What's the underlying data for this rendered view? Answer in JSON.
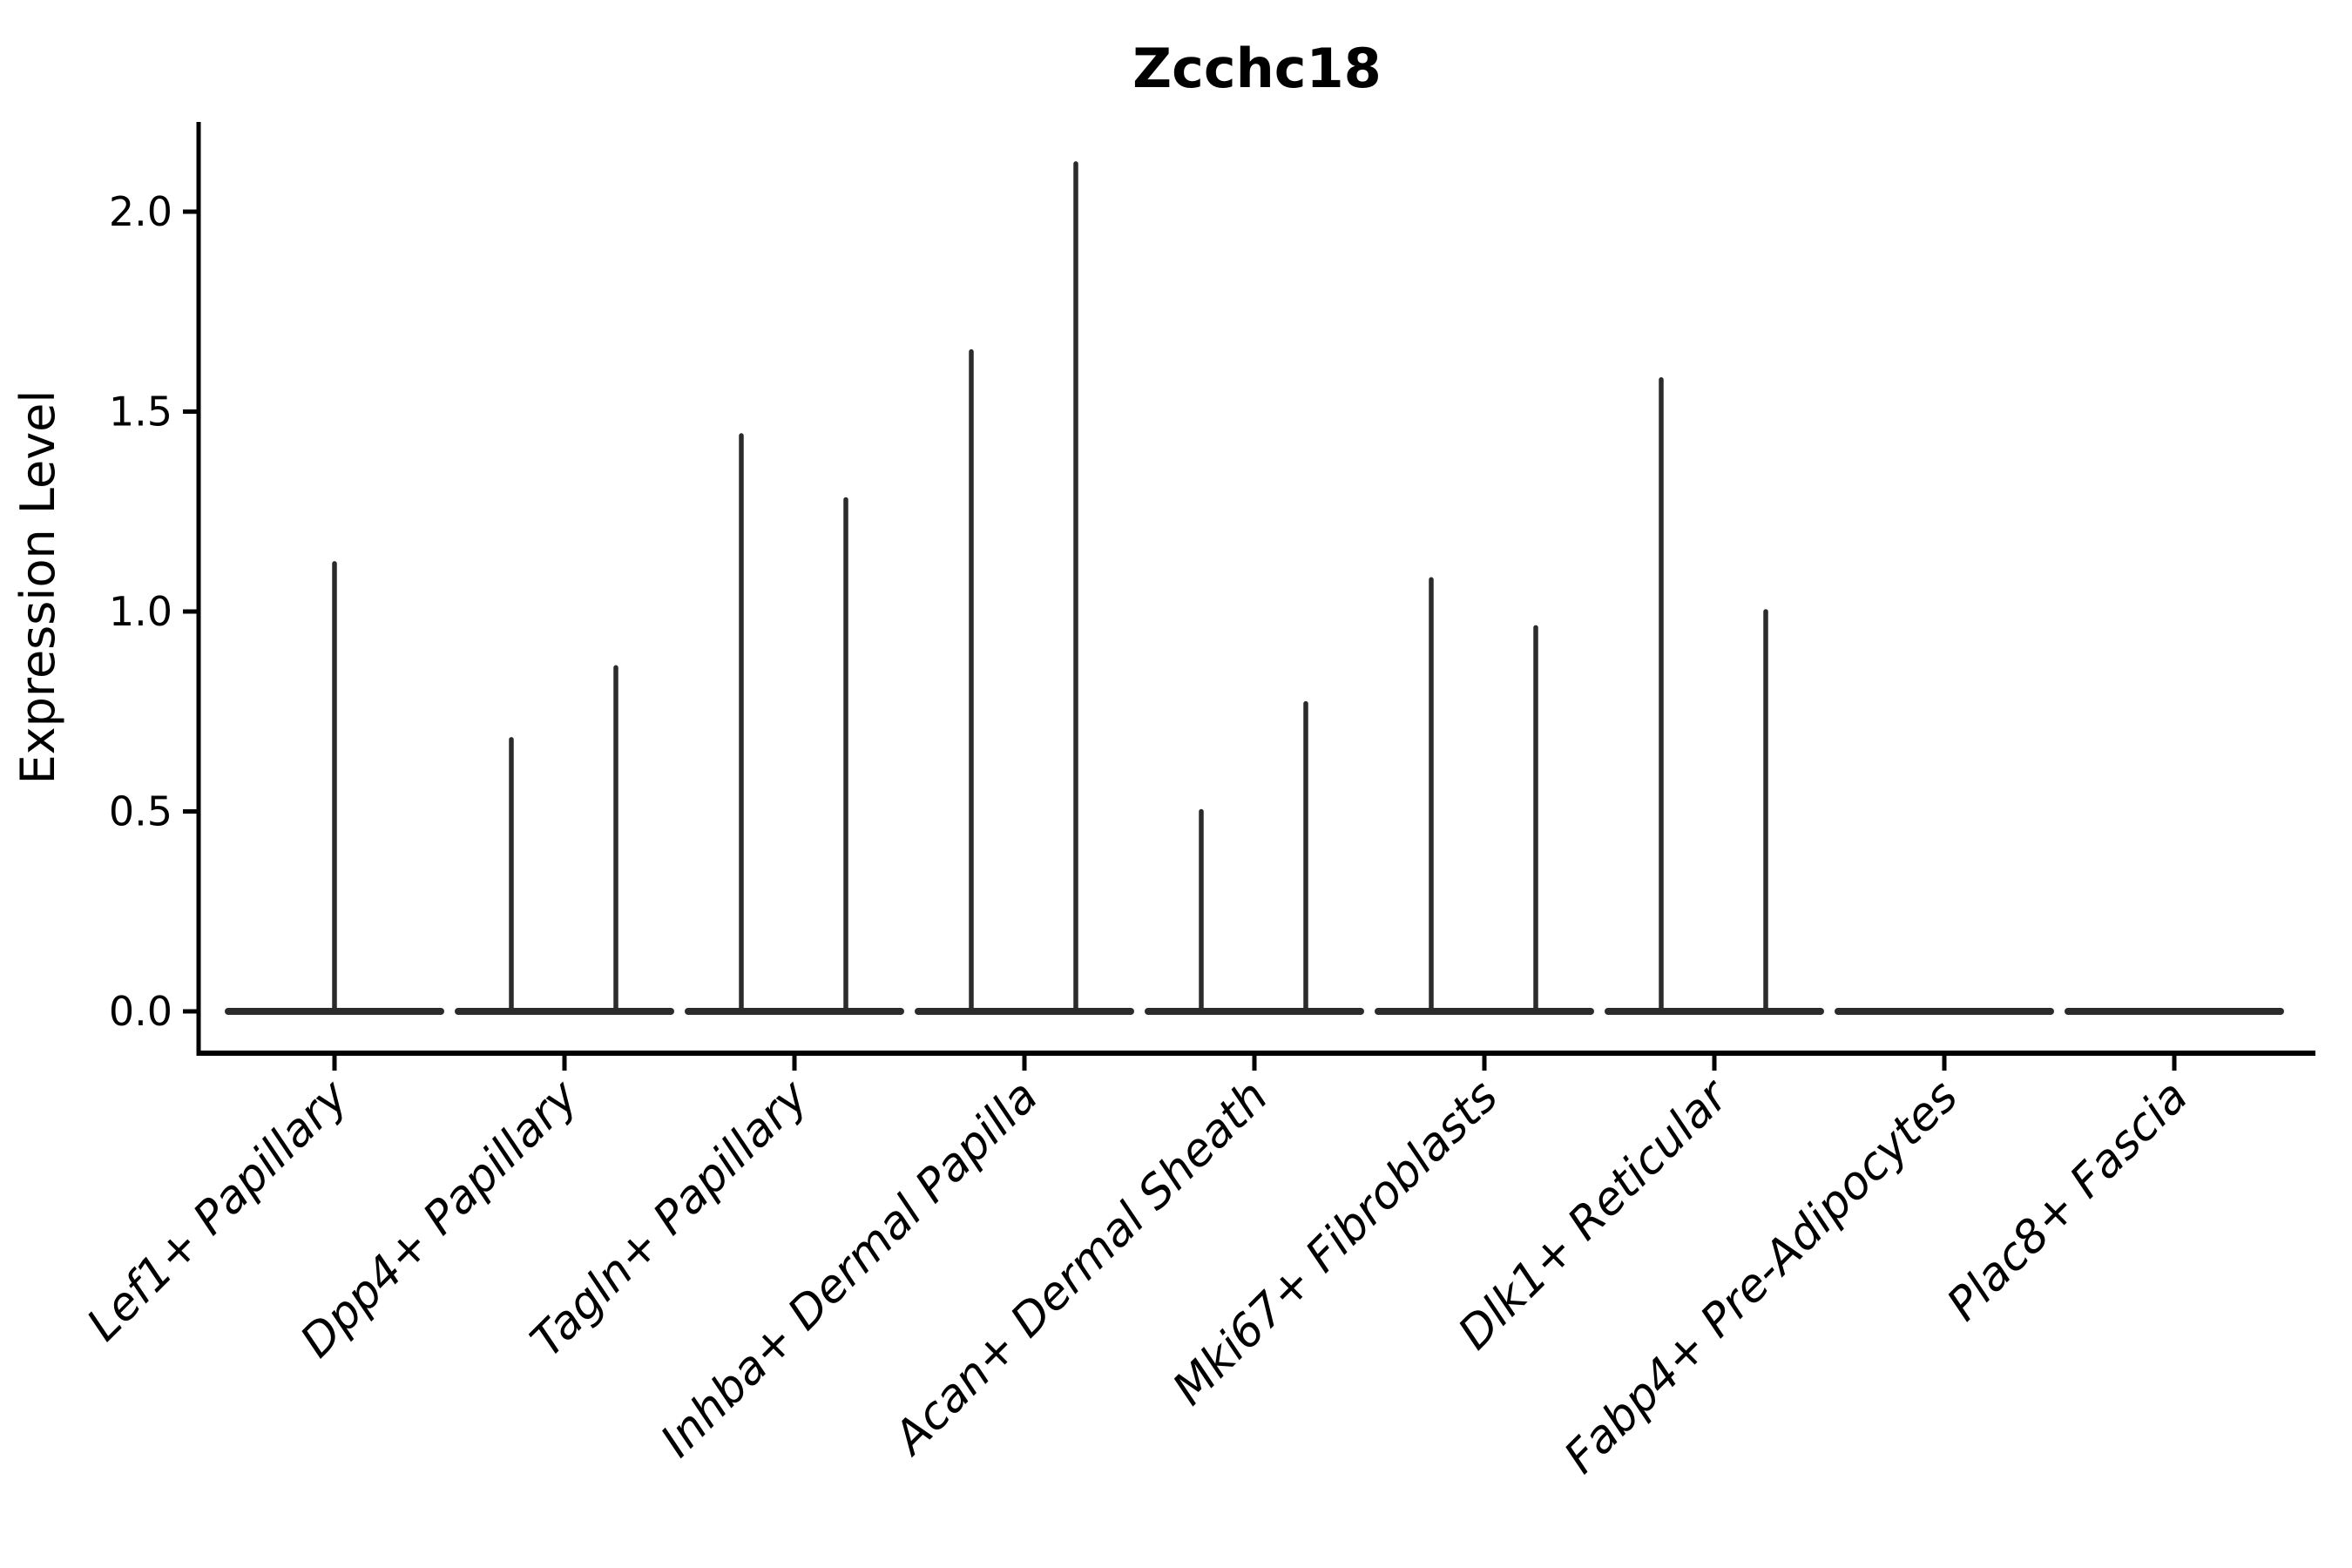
{
  "chart_data": {
    "type": "violin",
    "title": "Zcchc18",
    "xlabel": "",
    "ylabel": "Expression Level",
    "categories": [
      "Lef1+ Papillary",
      "Dpp4+ Papillary",
      "Tagln+ Papillary",
      "Inhba+ Dermal Papilla",
      "Acan+ Dermal Sheath",
      "Mki67+ Fibroblasts",
      "Dlk1+ Reticular",
      "Fabp4+ Pre-Adipocytes",
      "Plac8+ Fascia"
    ],
    "violins": [
      {
        "category": "Lef1+ Papillary",
        "needle_peaks": [
          1.12
        ]
      },
      {
        "category": "Dpp4+ Papillary",
        "needle_peaks": [
          0.68,
          0.86
        ]
      },
      {
        "category": "Tagln+ Papillary",
        "needle_peaks": [
          1.44,
          1.28
        ]
      },
      {
        "category": "Inhba+ Dermal Papilla",
        "needle_peaks": [
          1.65,
          2.12
        ]
      },
      {
        "category": "Acan+ Dermal Sheath",
        "needle_peaks": [
          0.5,
          0.77
        ]
      },
      {
        "category": "Mki67+ Fibroblasts",
        "needle_peaks": [
          1.08,
          0.96
        ]
      },
      {
        "category": "Dlk1+ Reticular",
        "needle_peaks": [
          1.58,
          1.0
        ]
      },
      {
        "category": "Fabp4+ Pre-Adipocytes",
        "needle_peaks": []
      },
      {
        "category": "Plac8+ Fascia",
        "needle_peaks": []
      }
    ],
    "ytick_labels": [
      "0.0",
      "0.5",
      "1.0",
      "1.5",
      "2.0"
    ],
    "ytick_values": [
      0,
      0.5,
      1,
      1.5,
      2
    ],
    "ylim": [
      -0.105,
      2.225
    ],
    "legend": "none",
    "grid": "off",
    "colors": {
      "violin_stroke": "#2b2b2b",
      "axis": "#000000",
      "text": "#000000",
      "background": "#ffffff"
    }
  }
}
